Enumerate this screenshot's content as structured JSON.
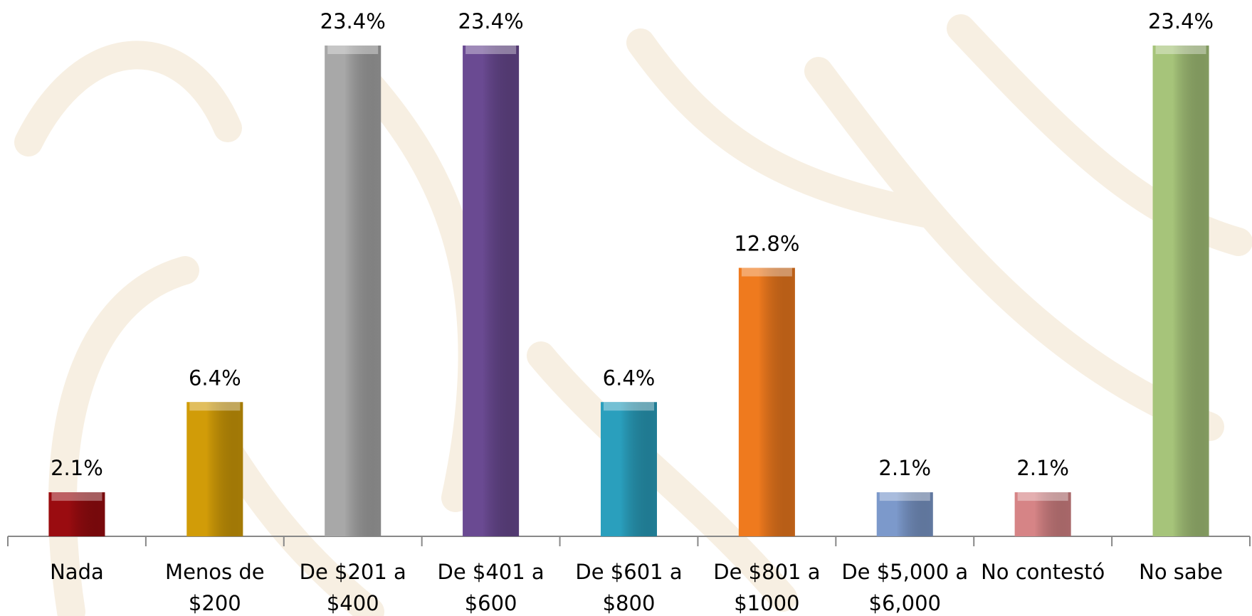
{
  "chart_data": {
    "type": "bar",
    "categories": [
      "Nada",
      "Menos de\n$200",
      "De $201 a\n$400",
      "De $401 a\n$600",
      "De $601 a\n$800",
      "De $801 a\n$1000",
      "De $5,000 a\n$6,000",
      "No contestó",
      "No sabe"
    ],
    "values": [
      2.1,
      6.4,
      23.4,
      23.4,
      6.4,
      12.8,
      2.1,
      2.1,
      23.4
    ],
    "value_labels": [
      "2.1%",
      "6.4%",
      "23.4%",
      "23.4%",
      "6.4%",
      "12.8%",
      "2.1%",
      "2.1%",
      "23.4%"
    ],
    "colors": [
      "#9a0c10",
      "#d19c08",
      "#a8a8a8",
      "#6a4a92",
      "#2a9fbd",
      "#ef7a1e",
      "#7c99cb",
      "#d68486",
      "#a6c47a"
    ]
  }
}
